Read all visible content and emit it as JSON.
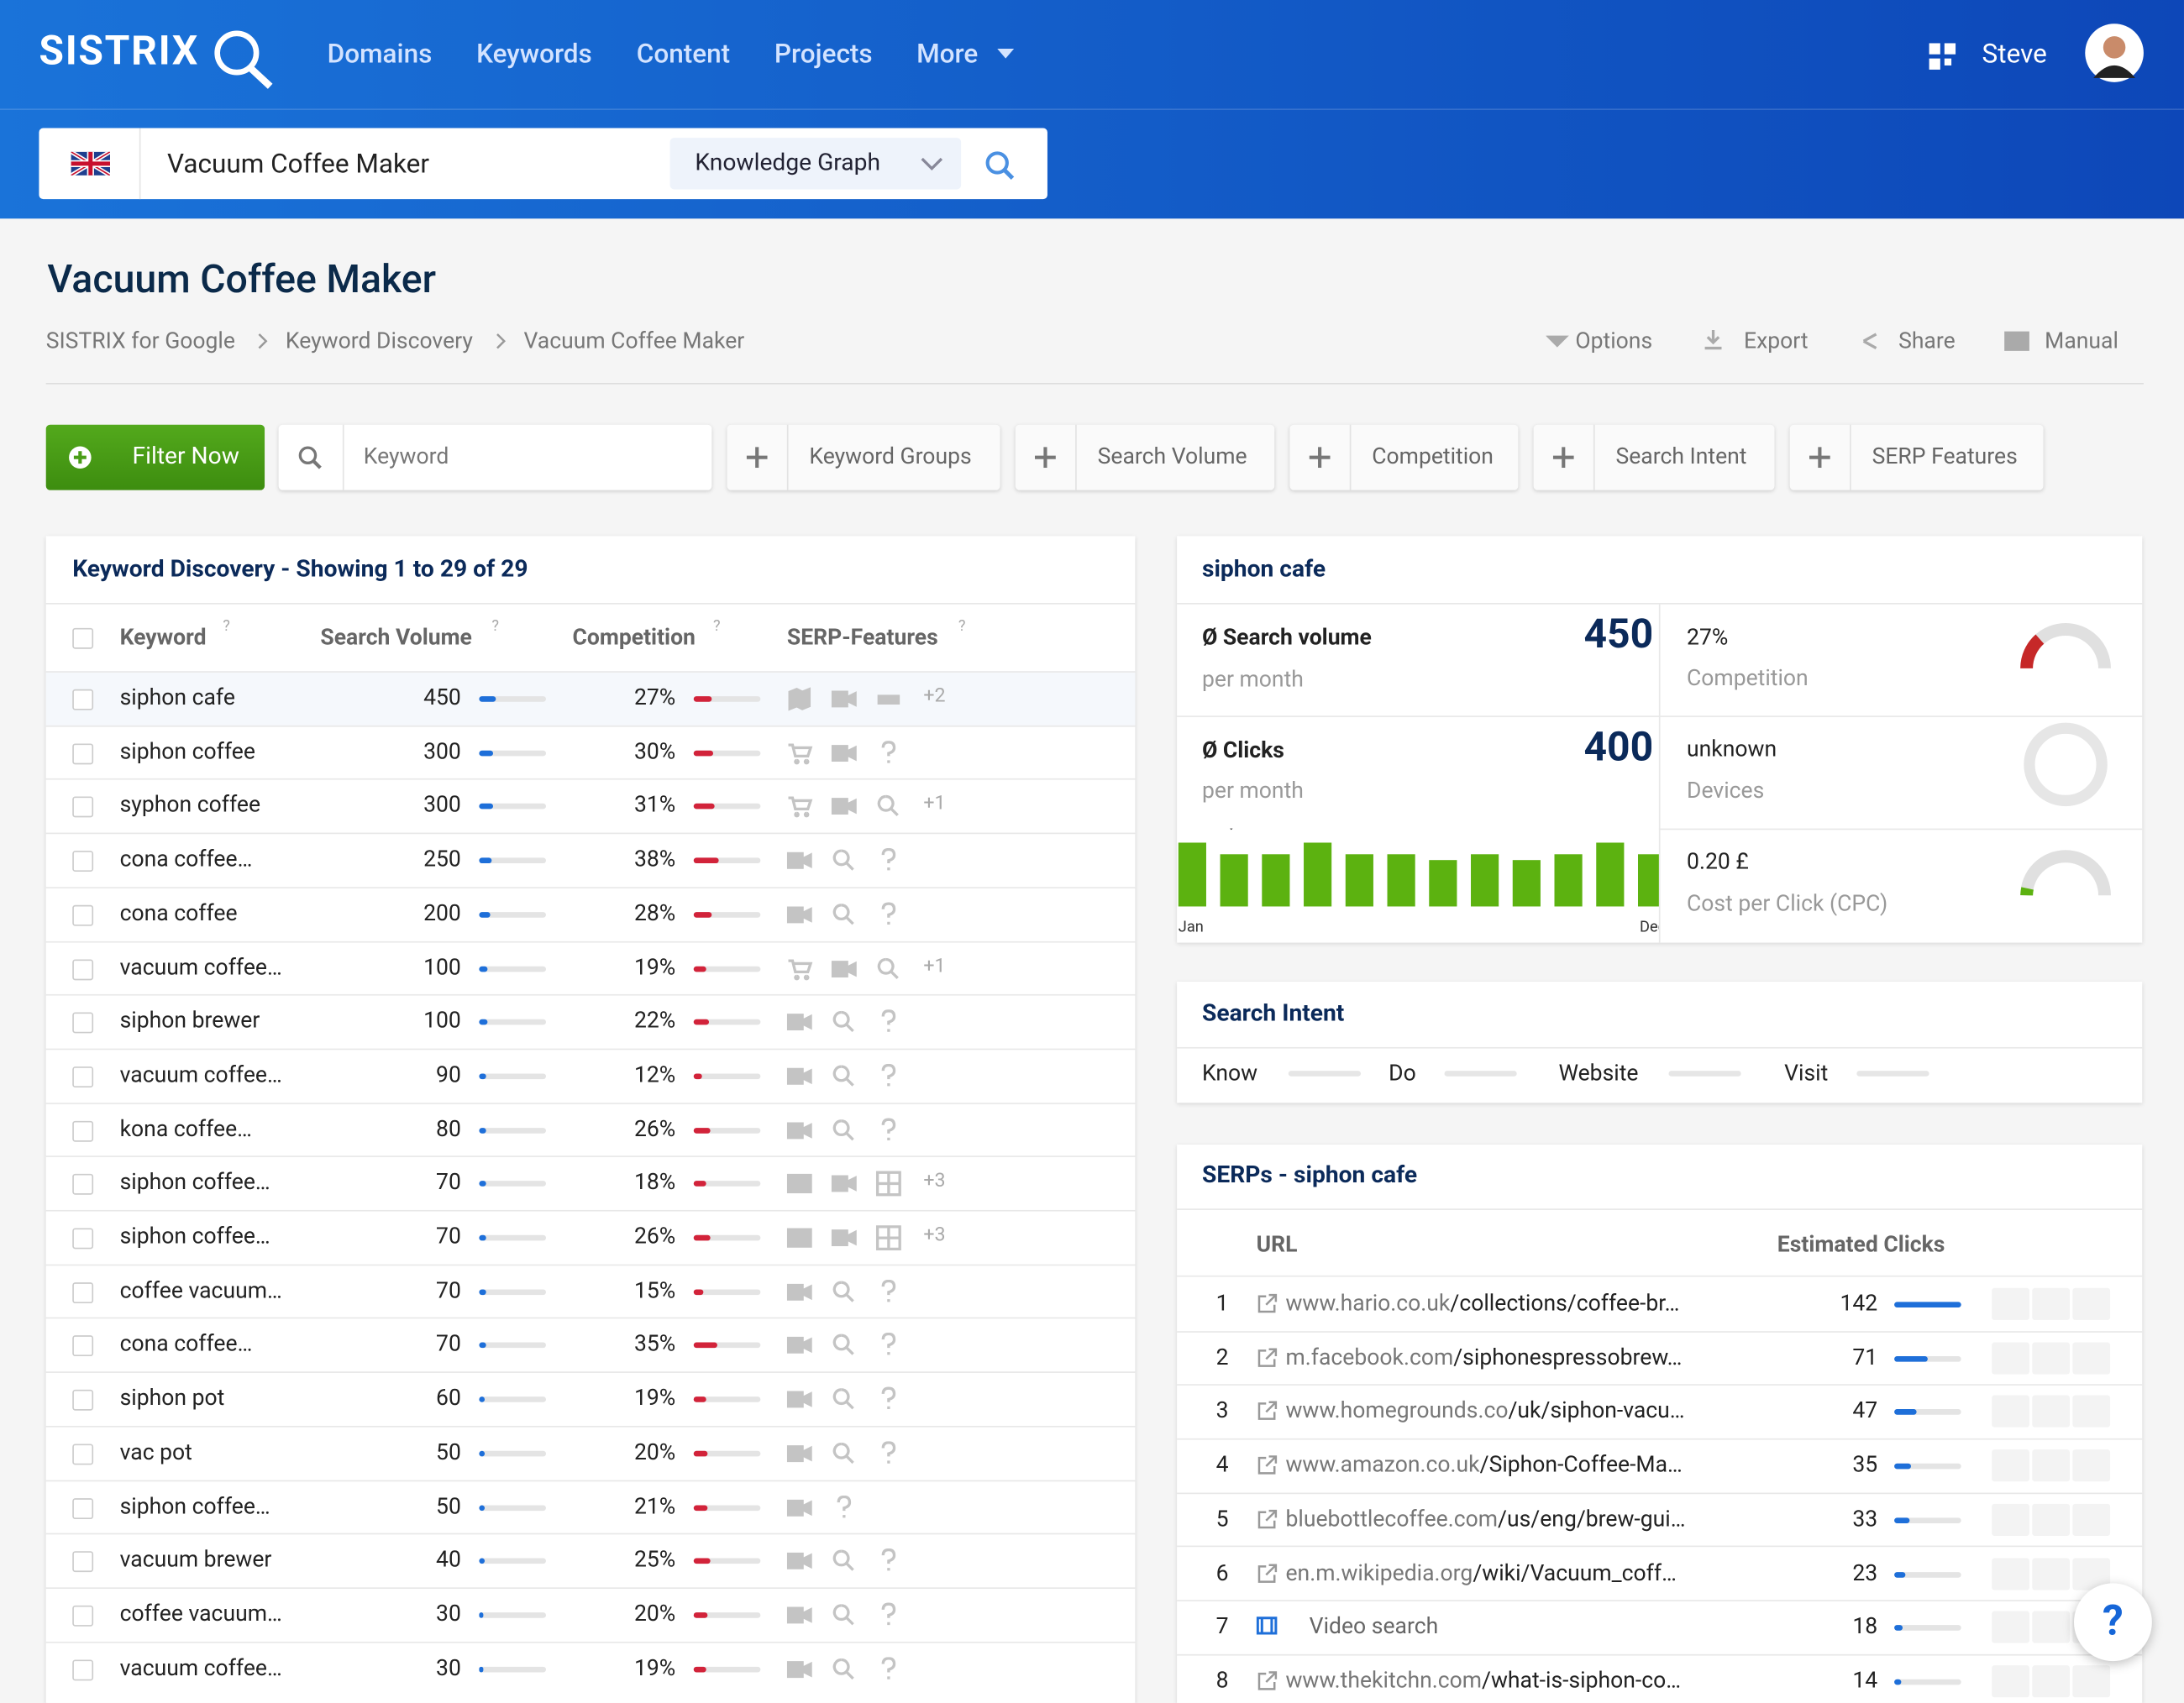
{
  "nav": {
    "logo": "SISTRIX",
    "items": [
      "Domains",
      "Keywords",
      "Content",
      "Projects",
      "More"
    ],
    "user": "Steve"
  },
  "search": {
    "query": "Vacuum Coffee Maker",
    "mode": "Knowledge Graph"
  },
  "page": {
    "title": "Vacuum Coffee Maker",
    "breadcrumb": [
      "SISTRIX for Google",
      "Keyword Discovery",
      "Vacuum Coffee Maker"
    ],
    "actions": [
      "Options",
      "Export",
      "Share",
      "Manual"
    ]
  },
  "filters": {
    "button": "Filter Now",
    "keyword_placeholder": "Keyword",
    "items": [
      "Keyword Groups",
      "Search Volume",
      "Competition",
      "Search Intent",
      "SERP Features"
    ]
  },
  "keyword_table": {
    "title": "Keyword Discovery - Showing 1 to 29 of 29",
    "columns": [
      "Keyword",
      "Search Volume",
      "Competition",
      "SERP-Features"
    ],
    "help_mark": "?",
    "rows": [
      {
        "keyword": "siphon cafe",
        "volume": 450,
        "competition": 27,
        "competition_label": "27%",
        "more": "+2"
      },
      {
        "keyword": "siphon coffee",
        "volume": 300,
        "competition": 30,
        "competition_label": "30%",
        "more": null
      },
      {
        "keyword": "syphon coffee",
        "volume": 300,
        "competition": 31,
        "competition_label": "31%",
        "more": "+1"
      },
      {
        "keyword": "cona coffee…",
        "volume": 250,
        "competition": 38,
        "competition_label": "38%",
        "more": null
      },
      {
        "keyword": "cona coffee",
        "volume": 200,
        "competition": 28,
        "competition_label": "28%",
        "more": null
      },
      {
        "keyword": "vacuum coffee…",
        "volume": 100,
        "competition": 19,
        "competition_label": "19%",
        "more": "+1"
      },
      {
        "keyword": "siphon brewer",
        "volume": 100,
        "competition": 22,
        "competition_label": "22%",
        "more": null
      },
      {
        "keyword": "vacuum coffee…",
        "volume": 90,
        "competition": 12,
        "competition_label": "12%",
        "more": null
      },
      {
        "keyword": "kona coffee…",
        "volume": 80,
        "competition": 26,
        "competition_label": "26%",
        "more": null
      },
      {
        "keyword": "siphon coffee…",
        "volume": 70,
        "competition": 18,
        "competition_label": "18%",
        "more": "+3"
      },
      {
        "keyword": "siphon coffee…",
        "volume": 70,
        "competition": 26,
        "competition_label": "26%",
        "more": "+3"
      },
      {
        "keyword": "coffee vacuum…",
        "volume": 70,
        "competition": 15,
        "competition_label": "15%",
        "more": null
      },
      {
        "keyword": "cona coffee…",
        "volume": 70,
        "competition": 35,
        "competition_label": "35%",
        "more": null
      },
      {
        "keyword": "siphon pot",
        "volume": 60,
        "competition": 19,
        "competition_label": "19%",
        "more": null
      },
      {
        "keyword": "vac pot",
        "volume": 50,
        "competition": 20,
        "competition_label": "20%",
        "more": null
      },
      {
        "keyword": "siphon coffee…",
        "volume": 50,
        "competition": 21,
        "competition_label": "21%",
        "more": null
      },
      {
        "keyword": "vacuum brewer",
        "volume": 40,
        "competition": 25,
        "competition_label": "25%",
        "more": null
      },
      {
        "keyword": "coffee vacuum…",
        "volume": 30,
        "competition": 20,
        "competition_label": "20%",
        "more": null
      },
      {
        "keyword": "vacuum coffee…",
        "volume": 30,
        "competition": 19,
        "competition_label": "19%",
        "more": null
      }
    ]
  },
  "detail": {
    "title": "siphon cafe",
    "volume_label": "Ø Search volume",
    "volume": 450,
    "volume_sub": "per month",
    "clicks_label": "Ø Clicks",
    "clicks": 400,
    "clicks_sub": "per month",
    "competition": 27,
    "competition_label": "27%",
    "competition_caption": "Competition",
    "devices": "unknown",
    "devices_caption": "Devices",
    "cpc": "0.20 £",
    "cpc_caption": "Cost per Click (CPC)",
    "monthly": {
      "categories": [
        "Jan",
        null,
        null,
        null,
        null,
        null,
        null,
        null,
        null,
        null,
        null,
        "Dec"
      ],
      "values": [
        550,
        450,
        450,
        550,
        450,
        450,
        400,
        450,
        400,
        450,
        550,
        450
      ],
      "ylim": [
        0,
        600
      ],
      "color": "#5cb210"
    }
  },
  "intent": {
    "title": "Search Intent",
    "items": [
      "Know",
      "Do",
      "Website",
      "Visit"
    ]
  },
  "serps": {
    "title": "SERPs - siphon cafe",
    "columns": [
      "URL",
      "Estimated Clicks"
    ],
    "rows": [
      {
        "rank": 1,
        "domain": "www.hario.co.uk",
        "path": "/collections/coffee-br…",
        "clicks": 142
      },
      {
        "rank": 2,
        "domain": "m.facebook.com",
        "path": "/siphonespressobrew…",
        "clicks": 71
      },
      {
        "rank": 3,
        "domain": "www.homegrounds.co",
        "path": "/uk/siphon-vacu…",
        "clicks": 47
      },
      {
        "rank": 4,
        "domain": "www.amazon.co.uk",
        "path": "/Siphon-Coffee-Ma…",
        "clicks": 35
      },
      {
        "rank": 5,
        "domain": "bluebottlecoffee.com",
        "path": "/us/eng/brew-gui…",
        "clicks": 33
      },
      {
        "rank": 6,
        "domain": "en.m.wikipedia.org",
        "path": "/wiki/Vacuum_coff…",
        "clicks": 23
      },
      {
        "rank": 7,
        "label": "Video search",
        "clicks": 18
      },
      {
        "rank": 8,
        "domain": "www.thekitchn.com",
        "path": "/what-is-siphon-co…",
        "clicks": 14
      }
    ]
  },
  "help_button": "?"
}
